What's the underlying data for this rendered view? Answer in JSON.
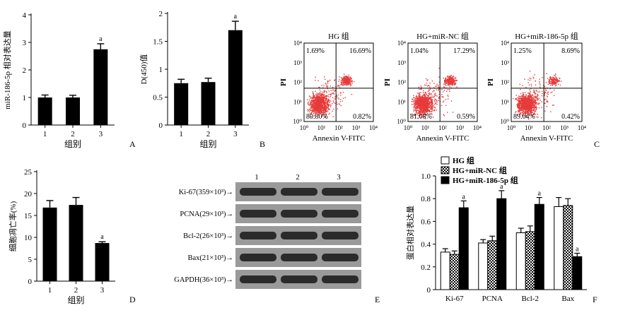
{
  "panel_letters": [
    "A",
    "B",
    "C",
    "D",
    "E",
    "F"
  ],
  "chart_data": [
    {
      "id": "A",
      "type": "bar",
      "categories": [
        "1",
        "2",
        "3"
      ],
      "values": [
        1.0,
        1.0,
        2.75
      ],
      "errors": [
        0.09,
        0.08,
        0.2
      ],
      "sig": [
        "",
        "",
        "a"
      ],
      "xlabel": "组别",
      "ylabel": "miR-186-5p 相对表达量",
      "ylim": [
        0,
        4
      ],
      "yticks": [
        0,
        1,
        2,
        3,
        4
      ],
      "color": "#000000"
    },
    {
      "id": "B",
      "type": "bar",
      "categories": [
        "1",
        "2",
        "3"
      ],
      "values": [
        0.75,
        0.77,
        1.7
      ],
      "errors": [
        0.07,
        0.07,
        0.16
      ],
      "sig": [
        "",
        "",
        "a"
      ],
      "xlabel": "组别",
      "ylabel": "D(450)值",
      "ylim": [
        0,
        2.0
      ],
      "yticks": [
        0,
        0.5,
        1.0,
        1.5,
        2.0
      ],
      "color": "#000000"
    },
    {
      "id": "C",
      "type": "scatter",
      "xlabel": "Annexin V-FITC",
      "ylabel": "PI",
      "axis_scale": "log",
      "ticks": [
        "10⁰",
        "10¹",
        "10²",
        "10³",
        "10⁴"
      ],
      "tick_values": [
        1,
        10,
        100,
        1000,
        10000
      ],
      "point_color": "#e63a3a",
      "plots": [
        {
          "title": "HG 组",
          "quadrants": {
            "upper_left": "1.69%",
            "upper_right": "16.69%",
            "lower_left": "80.80%",
            "lower_right": "0.82%"
          }
        },
        {
          "title": "HG+miR-NC 组",
          "quadrants": {
            "upper_left": "1.04%",
            "upper_right": "17.29%",
            "lower_left": "81.08%",
            "lower_right": "0.59%"
          }
        },
        {
          "title": "HG+miR-186-5p 组",
          "quadrants": {
            "upper_left": "1.25%",
            "upper_right": "8.69%",
            "lower_left": "89.64%",
            "lower_right": "0.42%"
          }
        }
      ]
    },
    {
      "id": "D",
      "type": "bar",
      "categories": [
        "1",
        "2",
        "3"
      ],
      "values": [
        16.8,
        17.4,
        8.7
      ],
      "errors": [
        1.6,
        1.7,
        0.3
      ],
      "sig": [
        "",
        "",
        "a"
      ],
      "xlabel": "组别",
      "ylabel": "细胞凋亡率(%)",
      "ylim": [
        0,
        25
      ],
      "yticks": [
        0,
        5,
        10,
        15,
        20,
        25
      ],
      "color": "#000000"
    },
    {
      "id": "F",
      "type": "bar",
      "categories": [
        "Ki-67",
        "PCNA",
        "Bcl-2",
        "Bax"
      ],
      "series": [
        {
          "name": "HG 组",
          "values": [
            0.33,
            0.41,
            0.5,
            0.73
          ],
          "errors": [
            0.03,
            0.03,
            0.04,
            0.08
          ],
          "sig": [
            "",
            "",
            "",
            ""
          ],
          "fill": "white"
        },
        {
          "name": "HG+miR-NC 组",
          "values": [
            0.31,
            0.43,
            0.51,
            0.74
          ],
          "errors": [
            0.03,
            0.04,
            0.05,
            0.06
          ],
          "sig": [
            "",
            "",
            "",
            ""
          ],
          "fill": "checker"
        },
        {
          "name": "HG+miR-186-5p 组",
          "values": [
            0.72,
            0.8,
            0.75,
            0.29
          ],
          "errors": [
            0.06,
            0.07,
            0.06,
            0.03
          ],
          "sig": [
            "a",
            "a",
            "a",
            "a"
          ],
          "fill": "black"
        }
      ],
      "xlabel": "",
      "ylabel": "蛋白相对表达量",
      "ylim": [
        0,
        1.0
      ],
      "yticks": [
        "0",
        "0.2",
        "0.4",
        "0.6",
        "0.8",
        "1.0"
      ],
      "legend": "top-left"
    }
  ],
  "western_blot": {
    "lanes": [
      "1",
      "2",
      "3"
    ],
    "bands": [
      "Ki-67(359×10³)→",
      "PCNA(29×10³)→",
      "Bcl-2(26×10³)→",
      "Bax(21×10³)→",
      "GAPDH(36×10³)→"
    ]
  }
}
